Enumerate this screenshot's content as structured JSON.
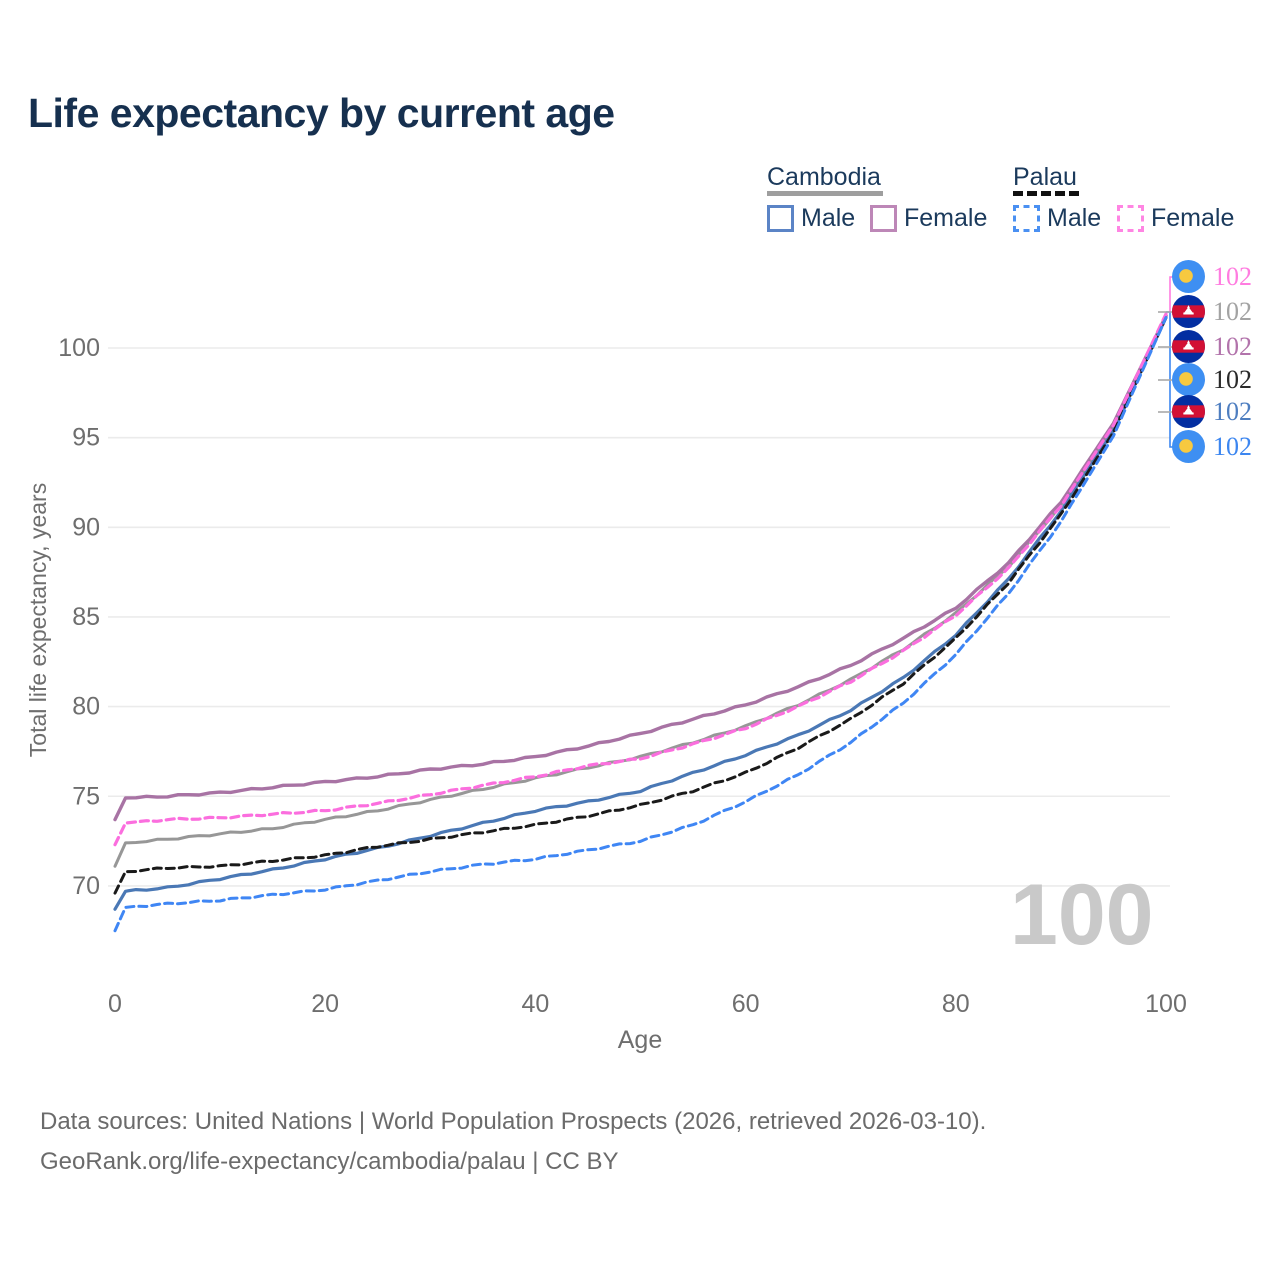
{
  "title": "Life expectancy by current age",
  "watermark_age": "100",
  "legend": {
    "cambodia_label": "Cambodia",
    "palau_label": "Palau",
    "cambodia_male_label": "Male",
    "cambodia_female_label": "Female",
    "palau_male_label": "Male",
    "palau_female_label": "Female"
  },
  "footer": {
    "line1": "Data sources: United Nations | World Population Prospects (2026, retrieved 2026-03-10).",
    "line2": "GeoRank.org/life-expectancy/cambodia/palau | CC BY"
  },
  "chart_data": {
    "type": "line",
    "title": "Life expectancy by current age",
    "xlabel": "Age",
    "ylabel": "Total life expectancy, years",
    "xlim": [
      0,
      100
    ],
    "ylim": [
      66.5,
      103
    ],
    "x_ticks": [
      0,
      20,
      40,
      60,
      80,
      100
    ],
    "y_ticks": [
      70,
      75,
      80,
      85,
      90,
      95,
      100
    ],
    "grid": "horizontal-only",
    "legend_position": "top-right",
    "ages": [
      0,
      1,
      5,
      10,
      15,
      20,
      25,
      30,
      35,
      40,
      45,
      50,
      55,
      60,
      65,
      70,
      75,
      80,
      85,
      90,
      95,
      100
    ],
    "series": [
      {
        "name": "Cambodia Both sexes",
        "country": "Cambodia",
        "sex": "Both",
        "line": "solid",
        "color": "#979797",
        "width": 3,
        "values": [
          71.1,
          72.4,
          72.6,
          72.9,
          73.2,
          73.7,
          74.2,
          74.8,
          75.4,
          76.0,
          76.6,
          77.2,
          78.0,
          78.9,
          80.1,
          81.5,
          83.2,
          85.2,
          87.8,
          91.2,
          95.7,
          101.8
        ]
      },
      {
        "name": "Cambodia Female",
        "country": "Cambodia",
        "sex": "Female",
        "line": "solid",
        "color": "#a873a4",
        "width": 3.4,
        "values": [
          73.7,
          74.9,
          75.0,
          75.2,
          75.5,
          75.8,
          76.1,
          76.5,
          76.8,
          77.2,
          77.8,
          78.5,
          79.3,
          80.1,
          81.1,
          82.3,
          83.8,
          85.5,
          88.0,
          91.4,
          95.8,
          101.8
        ]
      },
      {
        "name": "Cambodia Male",
        "country": "Cambodia",
        "sex": "Male",
        "line": "solid",
        "color": "#4a78b5",
        "width": 3.2,
        "values": [
          68.7,
          69.7,
          69.9,
          70.4,
          70.9,
          71.5,
          72.1,
          72.8,
          73.5,
          74.2,
          74.7,
          75.3,
          76.3,
          77.3,
          78.4,
          79.8,
          81.6,
          84.0,
          87.1,
          90.9,
          95.4,
          101.7
        ]
      },
      {
        "name": "Palau Both sexes",
        "country": "Palau",
        "sex": "Both",
        "line": "dashed",
        "color": "#1a1a1a",
        "width": 3,
        "values": [
          69.6,
          70.8,
          71.0,
          71.1,
          71.4,
          71.7,
          72.2,
          72.6,
          73.0,
          73.4,
          73.9,
          74.5,
          75.3,
          76.3,
          77.7,
          79.3,
          81.3,
          83.8,
          86.9,
          90.7,
          95.3,
          101.7
        ]
      },
      {
        "name": "Palau Female",
        "country": "Palau",
        "sex": "Female",
        "line": "dashed",
        "color": "#fb6ede",
        "width": 3.2,
        "values": [
          72.3,
          73.5,
          73.7,
          73.8,
          74.0,
          74.2,
          74.6,
          75.1,
          75.6,
          76.1,
          76.7,
          77.1,
          77.9,
          78.8,
          80.0,
          81.4,
          83.1,
          85.1,
          87.7,
          91.2,
          95.7,
          101.9
        ]
      },
      {
        "name": "Palau Male",
        "country": "Palau",
        "sex": "Male",
        "line": "dashed",
        "color": "#3f86f4",
        "width": 3,
        "values": [
          67.5,
          68.8,
          69.0,
          69.2,
          69.5,
          69.8,
          70.3,
          70.8,
          71.2,
          71.5,
          72.0,
          72.5,
          73.4,
          74.7,
          76.2,
          78.0,
          80.2,
          82.9,
          86.3,
          90.3,
          95.1,
          101.7
        ]
      }
    ],
    "end_annotations": [
      {
        "flag": "palau",
        "label": "102",
        "color": "#ff7ce0"
      },
      {
        "flag": "cambodia",
        "label": "102",
        "color": "#a3a3a3"
      },
      {
        "flag": "cambodia",
        "label": "102",
        "color": "#b273ab"
      },
      {
        "flag": "palau",
        "label": "102",
        "color": "#2a2a2a"
      },
      {
        "flag": "cambodia",
        "label": "102",
        "color": "#4e7ec0"
      },
      {
        "flag": "palau",
        "label": "102",
        "color": "#3c86f0"
      }
    ]
  }
}
